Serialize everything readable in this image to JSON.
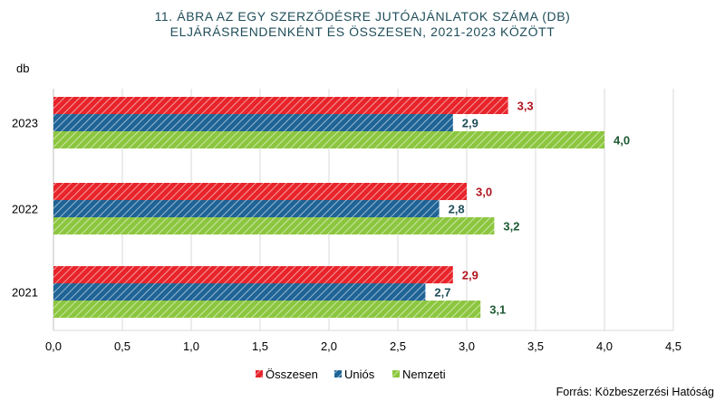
{
  "chart_data": {
    "type": "bar",
    "orientation": "horizontal",
    "title_lines": [
      "11. ÁBRA AZ EGY SZERZŐDÉSRE JUTÓAJÁNLATOK SZÁMA (DB)",
      "ELJÁRÁSRENDENKÉNT ÉS ÖSSZESEN, 2021-2023 KÖZÖTT"
    ],
    "ylabel": "db",
    "categories": [
      "2023",
      "2022",
      "2021"
    ],
    "series": [
      {
        "name": "Összesen",
        "values": [
          3.3,
          3.0,
          2.9
        ],
        "labels": [
          "3,3",
          "3,0",
          "2,9"
        ],
        "color": "#e8242b",
        "label_color": "#b0151f"
      },
      {
        "name": "Uniós",
        "values": [
          2.9,
          2.8,
          2.7
        ],
        "labels": [
          "2,9",
          "2,8",
          "2,7"
        ],
        "color": "#1f6496",
        "label_color": "#1f4e5a"
      },
      {
        "name": "Nemzeti",
        "values": [
          4.0,
          3.2,
          3.1
        ],
        "labels": [
          "4,0",
          "3,2",
          "3,1"
        ],
        "color": "#8cc63f",
        "label_color": "#1e5a32"
      }
    ],
    "xlim": [
      0,
      4.5
    ],
    "xticks": [
      "0,0",
      "0,5",
      "1,0",
      "1,5",
      "2,0",
      "2,5",
      "3,0",
      "3,5",
      "4,0",
      "4,5"
    ],
    "grid": "vertical",
    "legend": "bottom-center",
    "source": "Forrás: Közbeszerzési Hatóság"
  }
}
